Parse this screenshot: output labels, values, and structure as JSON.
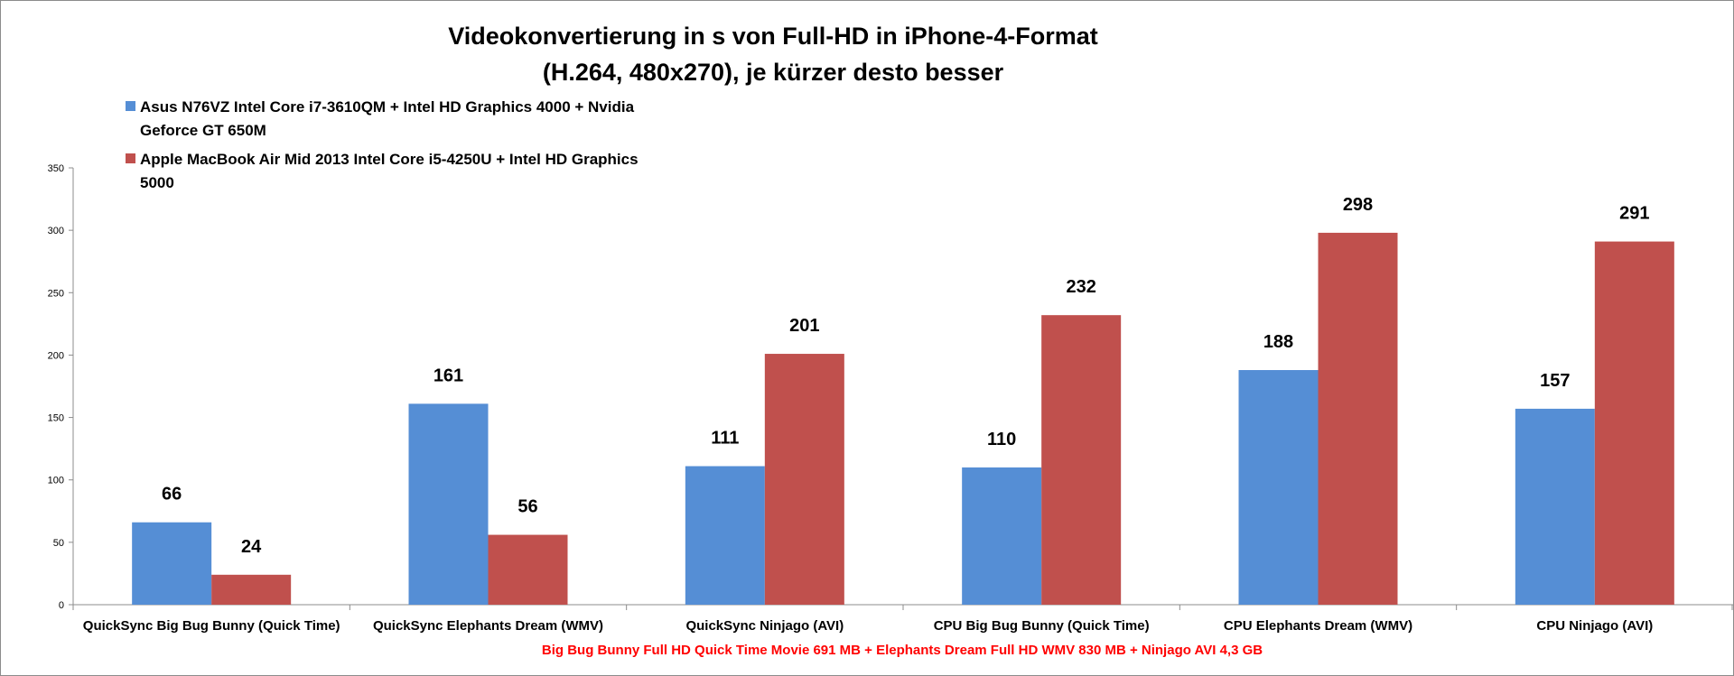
{
  "chart_data": {
    "type": "bar",
    "title_lines": [
      "Videokonvertierung in s von Full-HD in iPhone-4-Format",
      "(H.264, 480x270), je kürzer desto besser"
    ],
    "categories": [
      "QuickSync Big Bug Bunny (Quick Time)",
      "QuickSync Elephants Dream (WMV)",
      "QuickSync Ninjago (AVI)",
      "CPU Big Bug Bunny (Quick Time)",
      "CPU Elephants Dream (WMV)",
      "CPU Ninjago (AVI)"
    ],
    "series": [
      {
        "name": "Asus N76VZ Intel Core i7-3610QM + Intel HD Graphics 4000 + Nvidia Geforce GT 650M",
        "name_lines": [
          "Asus N76VZ Intel Core i7-3610QM + Intel HD Graphics 4000 + Nvidia",
          "Geforce GT 650M"
        ],
        "color": "#558ed5",
        "values": [
          66,
          161,
          111,
          110,
          188,
          157
        ]
      },
      {
        "name": "Apple MacBook Air Mid 2013 Intel Core i5-4250U + Intel HD Graphics 5000",
        "name_lines": [
          "Apple MacBook Air Mid 2013 Intel Core i5-4250U + Intel HD Graphics",
          "5000"
        ],
        "color": "#c0504d",
        "values": [
          24,
          56,
          201,
          232,
          298,
          291
        ]
      }
    ],
    "ylim": [
      0,
      350
    ],
    "yticks": [
      "0",
      "50",
      "100",
      "150",
      "200",
      "250",
      "300",
      "350"
    ],
    "ytick_values": [
      0,
      50,
      100,
      150,
      200,
      250,
      300,
      350
    ],
    "xlabel_note": "Big Bug Bunny Full HD Quick Time Movie 691 MB + Elephants Dream Full HD WMV 830 MB + Ninjago AVI 4,3 GB",
    "xlabel_note_color": "#ff0000",
    "legend_position": "top-left",
    "grid": false,
    "data_labels": true
  }
}
